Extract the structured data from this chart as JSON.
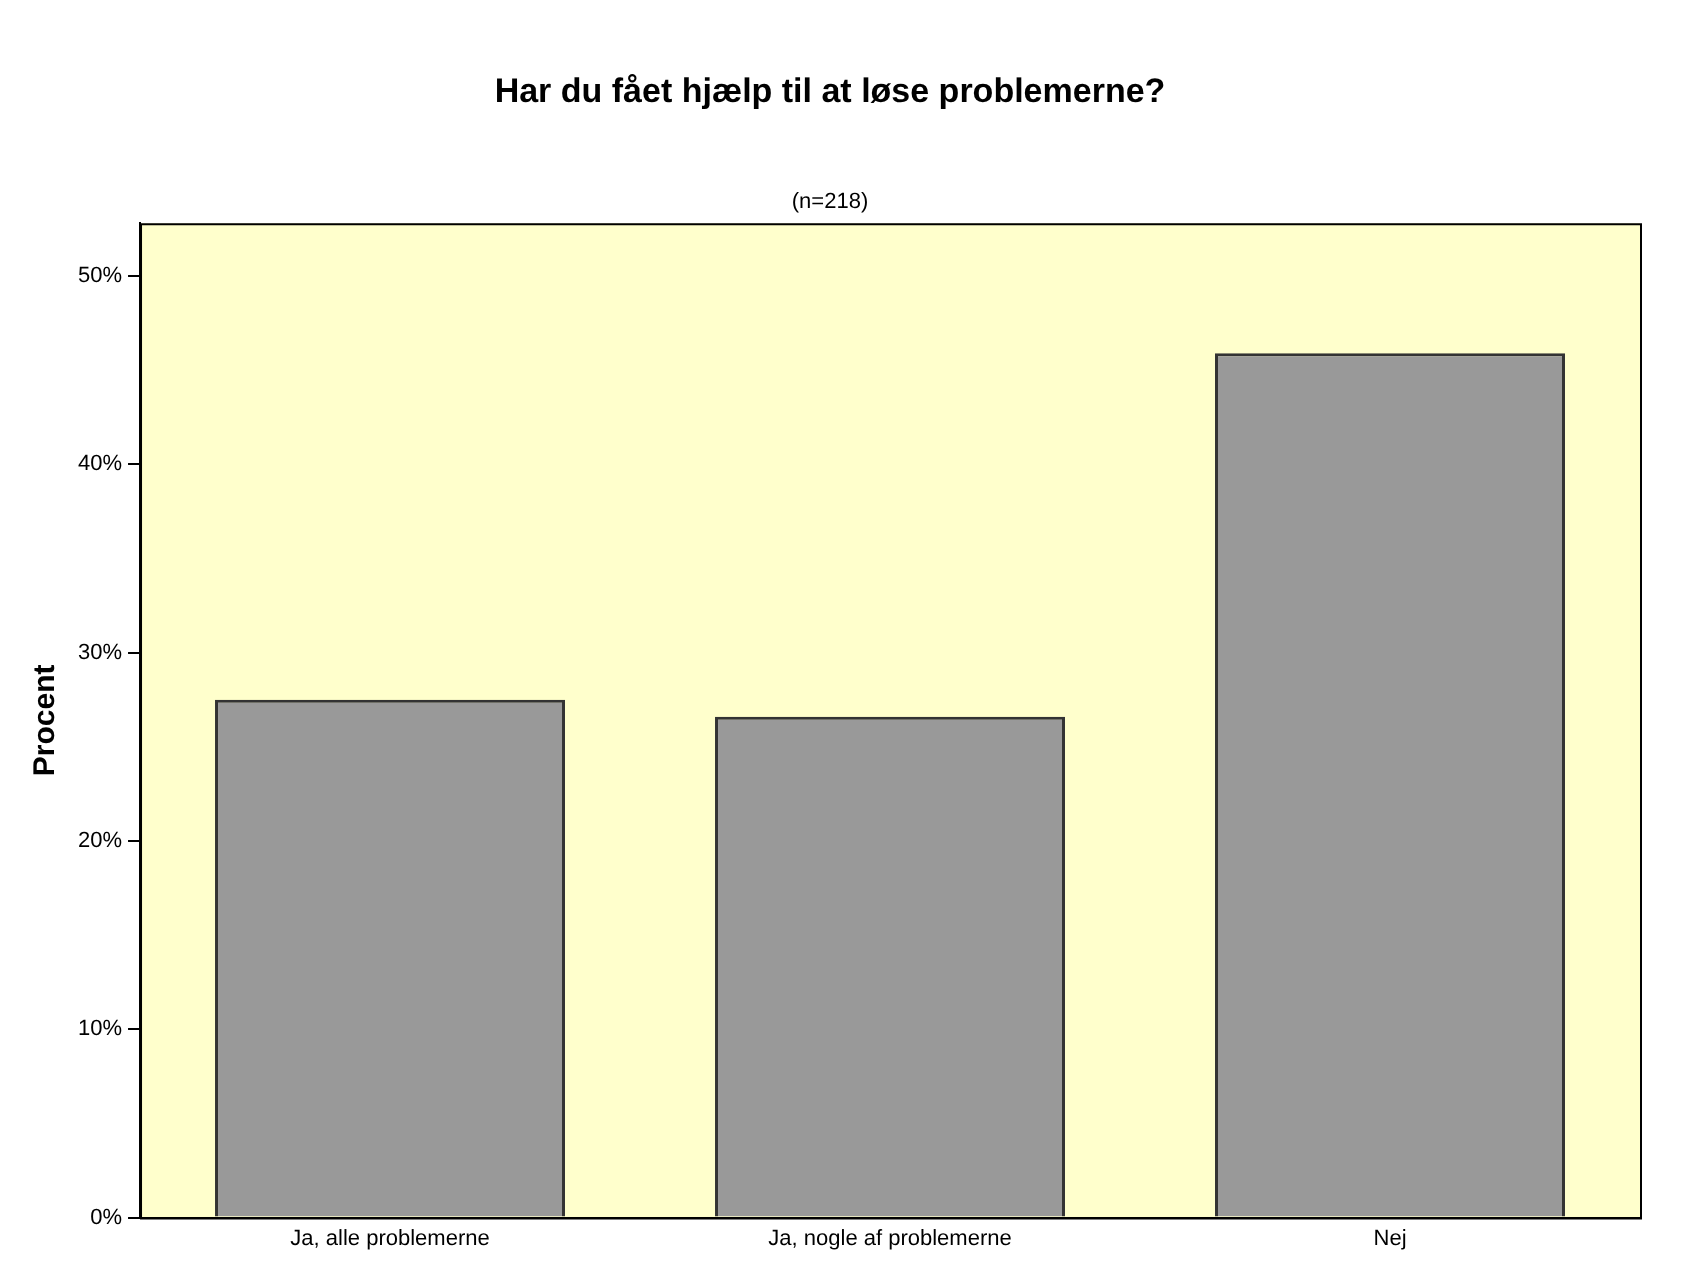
{
  "chart_data": {
    "type": "bar",
    "title": "Har du fået hjælp til at løse problemerne?",
    "subtitle": "(n=218)",
    "ylabel": "Procent",
    "categories": [
      "Ja, alle problemerne",
      "Ja, nogle af problemerne",
      "Nej"
    ],
    "values": [
      27.5,
      26.6,
      45.9
    ],
    "color": "#999999",
    "ylim": [
      0,
      52.8
    ],
    "yticks": [
      {
        "value": 0,
        "label": "0%"
      },
      {
        "value": 10,
        "label": "10%"
      },
      {
        "value": 20,
        "label": "20%"
      },
      {
        "value": 30,
        "label": "30%"
      },
      {
        "value": 40,
        "label": "40%"
      },
      {
        "value": 50,
        "label": "50%"
      }
    ],
    "grid": false,
    "legend": false
  }
}
